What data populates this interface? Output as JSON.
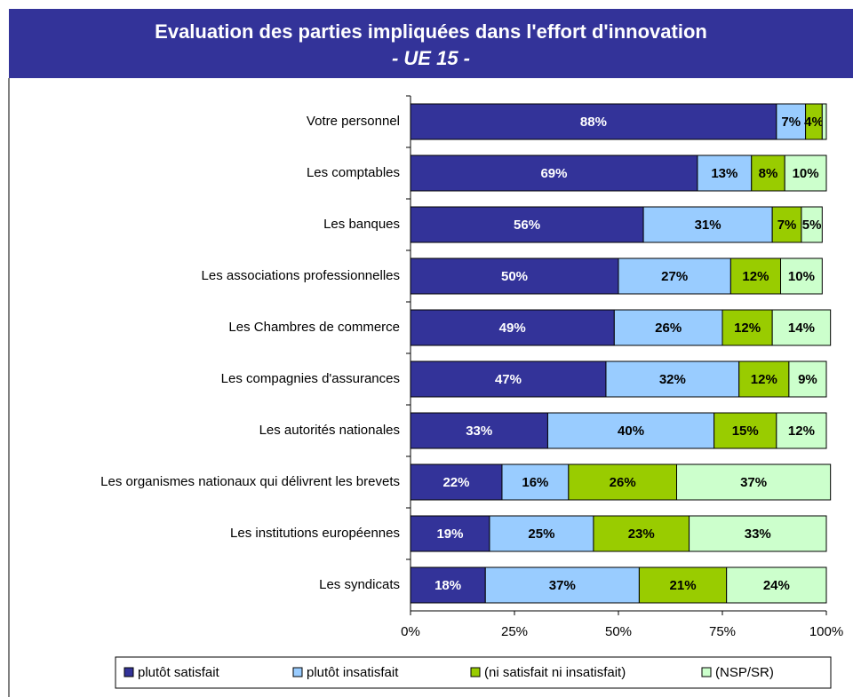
{
  "chart_data": {
    "type": "stacked_barh",
    "title": "Evaluation des parties impliquées dans l'effort d'innovation",
    "subtitle": "- UE 15 -",
    "categories": [
      "Votre personnel",
      "Les comptables",
      "Les banques",
      "Les associations professionnelles",
      "Les Chambres de commerce",
      "Les compagnies d'assurances",
      "Les autorités nationales",
      "Les organismes nationaux qui délivrent les brevets",
      "Les institutions européennes",
      "Les syndicats"
    ],
    "series": [
      {
        "name": "plutôt satisfait",
        "color": "#333399",
        "values": [
          88,
          69,
          56,
          50,
          49,
          47,
          33,
          22,
          19,
          18
        ],
        "value_labels": [
          "88%",
          "69%",
          "56%",
          "50%",
          "49%",
          "47%",
          "33%",
          "22%",
          "19%",
          "18%"
        ]
      },
      {
        "name": "plutôt insatisfait",
        "color": "#99ccff",
        "values": [
          7,
          13,
          31,
          27,
          26,
          32,
          40,
          16,
          25,
          37
        ],
        "value_labels": [
          "7%",
          "13%",
          "31%",
          "27%",
          "26%",
          "32%",
          "40%",
          "16%",
          "25%",
          "37%"
        ]
      },
      {
        "name": "(ni satisfait ni insatisfait)",
        "color": "#99cc00",
        "values": [
          4,
          8,
          7,
          12,
          12,
          12,
          15,
          26,
          23,
          21
        ],
        "value_labels": [
          "4%",
          "8%",
          "7%",
          "12%",
          "12%",
          "12%",
          "15%",
          "26%",
          "23%",
          "21%"
        ]
      },
      {
        "name": "(NSP/SR)",
        "color": "#ccffcc",
        "values": [
          1,
          10,
          5,
          10,
          14,
          9,
          12,
          37,
          33,
          24
        ],
        "value_labels": [
          null,
          "10%",
          "5%",
          "10%",
          "14%",
          "9%",
          "12%",
          "37%",
          "33%",
          "24%"
        ]
      }
    ],
    "xlim": [
      0,
      100
    ],
    "xticks": [
      {
        "value": 0,
        "label": "0%"
      },
      {
        "value": 25,
        "label": "25%"
      },
      {
        "value": 50,
        "label": "50%"
      },
      {
        "value": 75,
        "label": "75%"
      },
      {
        "value": 100,
        "label": "100%"
      }
    ]
  }
}
